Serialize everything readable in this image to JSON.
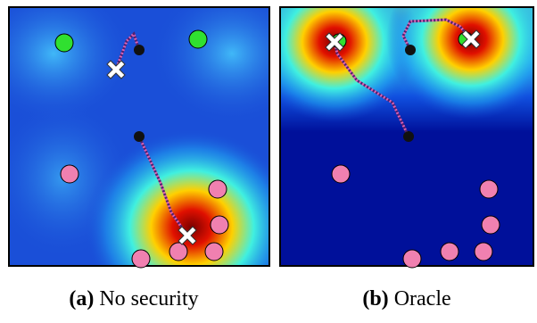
{
  "panels": [
    {
      "label": "(a)",
      "caption": "No security"
    },
    {
      "label": "(b)",
      "caption": "Oracle"
    }
  ]
}
